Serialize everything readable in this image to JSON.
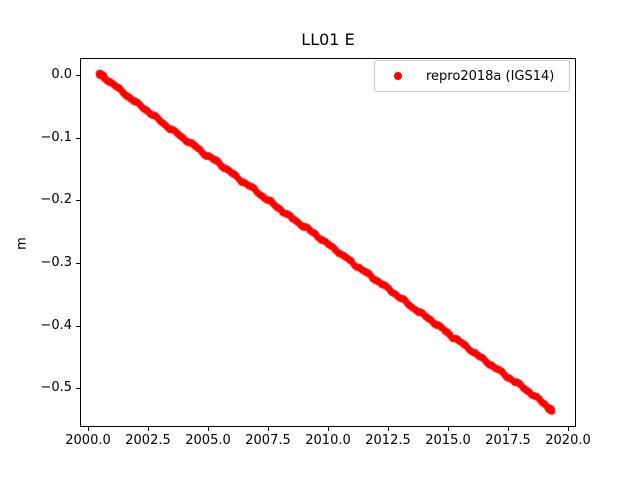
{
  "figure": {
    "background_color": "#ffffff",
    "axes_edge_color": "#000000",
    "legend_border_color": "#cccccc"
  },
  "chart_data": {
    "type": "scatter",
    "title": "LL01 E",
    "xlabel": "",
    "ylabel": "m",
    "grid": false,
    "xlim": [
      1999.66,
      2020.35
    ],
    "ylim": [
      -0.562,
      0.027
    ],
    "x_ticks": [
      2000.0,
      2002.5,
      2005.0,
      2007.5,
      2010.0,
      2012.5,
      2015.0,
      2017.5,
      2020.0
    ],
    "x_tick_labels": [
      "2000.0",
      "2002.5",
      "2005.0",
      "2007.5",
      "2010.0",
      "2012.5",
      "2015.0",
      "2017.5",
      "2020.0"
    ],
    "y_ticks": [
      0.0,
      -0.1,
      -0.2,
      -0.3,
      -0.4,
      -0.5
    ],
    "y_tick_labels": [
      "0.0",
      "−0.1",
      "−0.2",
      "−0.3",
      "−0.4",
      "−0.5"
    ],
    "legend": {
      "position": "upper right",
      "entries": [
        {
          "label": "repro2018a (IGS14)",
          "color": "#ff0000",
          "marker": "dot"
        }
      ]
    },
    "series": [
      {
        "name": "repro2018a (IGS14)",
        "color": "#ff0000",
        "marker": "dot",
        "marker_radius_px": 2.6,
        "x_start": 2000.45,
        "x_end": 2019.35,
        "trend_m_per_year": -0.0283,
        "noise_m": 0.0035,
        "points_per_year": 140,
        "anchors": [
          [
            2000.45,
            0.001
          ],
          [
            2000.9,
            -0.01
          ],
          [
            2001.4,
            -0.026
          ],
          [
            2001.9,
            -0.041
          ],
          [
            2002.4,
            -0.055
          ],
          [
            2002.9,
            -0.07
          ],
          [
            2003.4,
            -0.085
          ],
          [
            2003.9,
            -0.099
          ],
          [
            2004.4,
            -0.112
          ],
          [
            2004.9,
            -0.127
          ],
          [
            2005.4,
            -0.139
          ],
          [
            2005.9,
            -0.154
          ],
          [
            2006.4,
            -0.169
          ],
          [
            2006.9,
            -0.182
          ],
          [
            2007.4,
            -0.197
          ],
          [
            2007.9,
            -0.211
          ],
          [
            2008.4,
            -0.226
          ],
          [
            2008.9,
            -0.239
          ],
          [
            2009.4,
            -0.252
          ],
          [
            2009.9,
            -0.267
          ],
          [
            2010.4,
            -0.281
          ],
          [
            2010.9,
            -0.296
          ],
          [
            2011.4,
            -0.31
          ],
          [
            2011.9,
            -0.324
          ],
          [
            2012.4,
            -0.338
          ],
          [
            2012.9,
            -0.352
          ],
          [
            2013.4,
            -0.367
          ],
          [
            2013.9,
            -0.381
          ],
          [
            2014.4,
            -0.394
          ],
          [
            2014.9,
            -0.409
          ],
          [
            2015.4,
            -0.423
          ],
          [
            2015.9,
            -0.437
          ],
          [
            2016.4,
            -0.452
          ],
          [
            2016.9,
            -0.465
          ],
          [
            2017.4,
            -0.479
          ],
          [
            2017.9,
            -0.492
          ],
          [
            2018.4,
            -0.506
          ],
          [
            2018.9,
            -0.521
          ],
          [
            2019.35,
            -0.535
          ]
        ]
      }
    ]
  }
}
